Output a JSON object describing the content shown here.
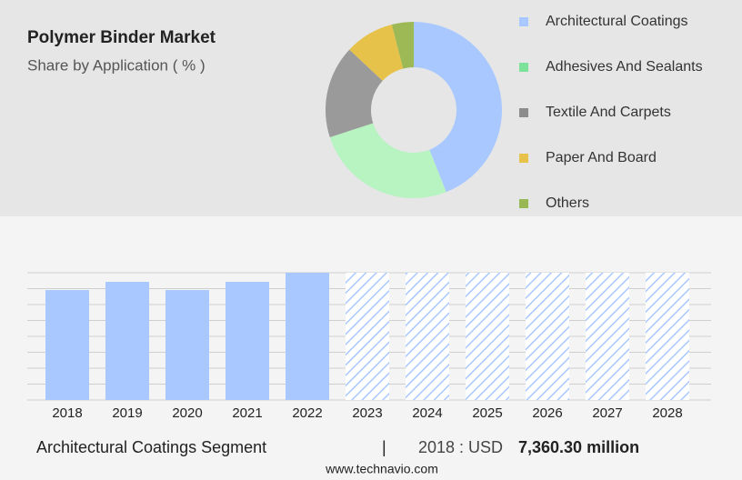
{
  "chart_data": [
    {
      "type": "pie",
      "title": "Polymer Binder Market",
      "subtitle": "Share by Application ( % )",
      "categories": [
        "Architectural Coatings",
        "Adhesives And Sealants",
        "Textile And Carpets",
        "Paper And Board",
        "Others"
      ],
      "values": [
        44,
        26,
        17,
        9,
        4
      ],
      "colors": [
        "#a8c8ff",
        "#b8f3c2",
        "#9a9a9a",
        "#e6c24a",
        "#9cb955"
      ],
      "legend_colors": [
        "#a8c8ff",
        "#7ee39a",
        "#8c8c8c",
        "#e6c24a",
        "#98b855"
      ],
      "donut": true
    },
    {
      "type": "bar",
      "categories": [
        "2018",
        "2019",
        "2020",
        "2021",
        "2022",
        "2023",
        "2024",
        "2025",
        "2026",
        "2027",
        "2028"
      ],
      "values": [
        7360.3,
        7910,
        7360,
        7910,
        8520,
        8520,
        8520,
        8520,
        8520,
        8520,
        8520
      ],
      "color": "#a8c8ff",
      "forecast_from": "2023",
      "ylim": [
        0,
        8520
      ],
      "yticks": [
        0,
        1065,
        2130,
        3195,
        4260,
        5325,
        6390,
        7455,
        8520
      ],
      "grid": true
    }
  ],
  "footer": {
    "segment": "Architectural Coatings Segment",
    "separator": "|",
    "year_label": "2018 : USD",
    "value_label": "7,360.30 million",
    "source": "www.technavio.com"
  }
}
